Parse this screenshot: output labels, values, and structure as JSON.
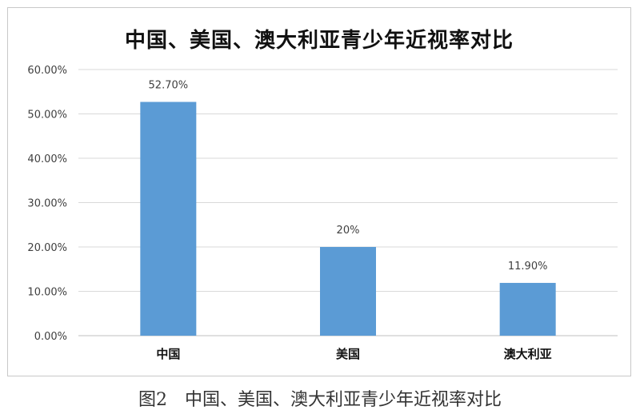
{
  "chart_data": {
    "type": "bar",
    "title": "中国、美国、澳大利亚青少年近视率对比",
    "categories": [
      "中国",
      "美国",
      "澳大利亚"
    ],
    "values": [
      52.7,
      20.0,
      11.9
    ],
    "data_labels": [
      "52.70%",
      "20%",
      "11.90%"
    ],
    "ylim": [
      0,
      60
    ],
    "y_ticks": [
      "0.00%",
      "10.00%",
      "20.00%",
      "30.00%",
      "40.00%",
      "50.00%",
      "60.00%"
    ],
    "grid": true,
    "legend": "none",
    "bar_color": "#5b9bd5"
  },
  "caption": "图2　中国、美国、澳大利亚青少年近视率对比"
}
